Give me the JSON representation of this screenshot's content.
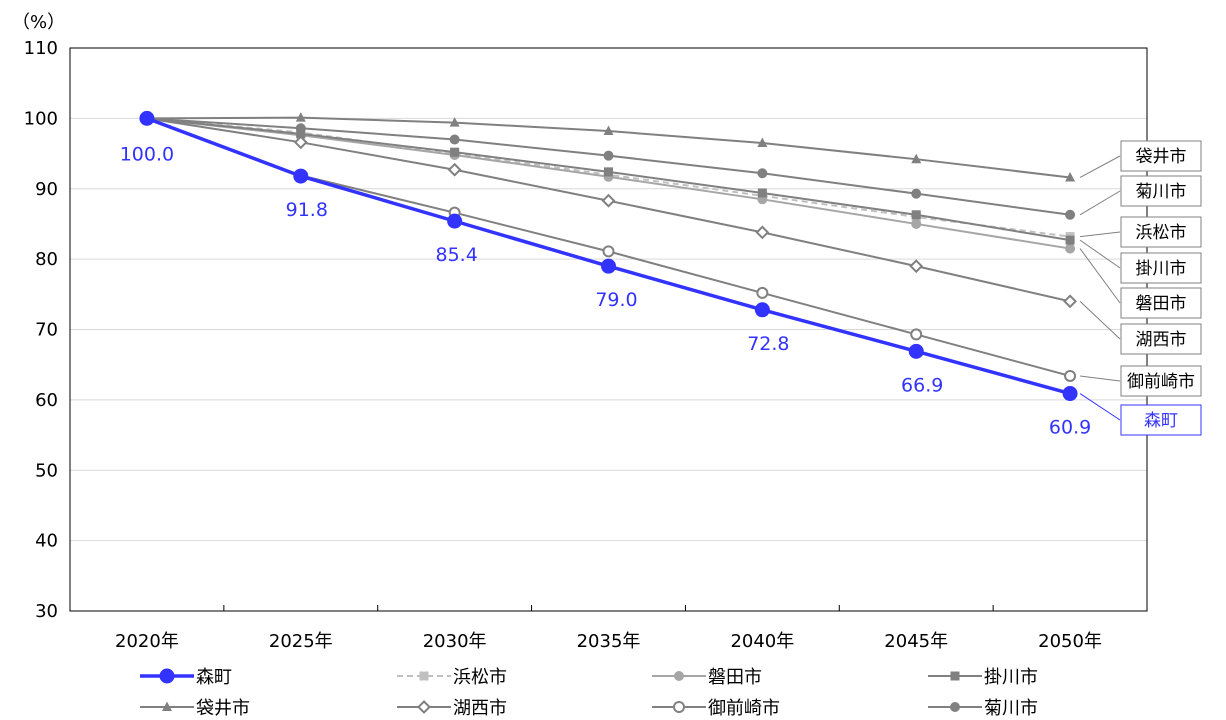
{
  "chart_data": {
    "type": "line",
    "title": "",
    "ylabel": "（%）",
    "xlabel": "",
    "ylim": [
      30,
      110
    ],
    "yticks": [
      30,
      40,
      50,
      60,
      70,
      80,
      90,
      100,
      110
    ],
    "categories": [
      "2020年",
      "2025年",
      "2030年",
      "2035年",
      "2040年",
      "2045年",
      "2050年"
    ],
    "grid": true,
    "legend_position": "bottom",
    "series": [
      {
        "name": "森町",
        "values": [
          100.0,
          91.8,
          85.4,
          79.0,
          72.8,
          66.9,
          60.9
        ],
        "color": "#3333ff",
        "marker": "circle-filled",
        "line": "solid-thick",
        "data_labels": [
          "100.0",
          "91.8",
          "85.4",
          "79.0",
          "72.8",
          "66.9",
          "60.9"
        ]
      },
      {
        "name": "浜松市",
        "values": [
          100.0,
          98.0,
          95.0,
          92.0,
          89.0,
          86.0,
          83.2
        ],
        "color": "#c0c0c0",
        "marker": "square",
        "line": "dashed"
      },
      {
        "name": "磐田市",
        "values": [
          100.0,
          97.6,
          94.8,
          91.7,
          88.5,
          85.0,
          81.5
        ],
        "color": "#a6a6a6",
        "marker": "circle-filled",
        "line": "solid"
      },
      {
        "name": "掛川市",
        "values": [
          100.0,
          97.8,
          95.2,
          92.4,
          89.4,
          86.3,
          82.7
        ],
        "color": "#808080",
        "marker": "square",
        "line": "solid"
      },
      {
        "name": "袋井市",
        "values": [
          100.0,
          100.1,
          99.4,
          98.2,
          96.5,
          94.2,
          91.6
        ],
        "color": "#808080",
        "marker": "triangle",
        "line": "solid"
      },
      {
        "name": "湖西市",
        "values": [
          100.0,
          96.6,
          92.7,
          88.3,
          83.8,
          79.0,
          74.0
        ],
        "color": "#808080",
        "marker": "diamond-open",
        "line": "solid"
      },
      {
        "name": "御前崎市",
        "values": [
          100.0,
          91.9,
          86.6,
          81.1,
          75.2,
          69.3,
          63.4
        ],
        "color": "#808080",
        "marker": "circle-open",
        "line": "solid"
      },
      {
        "name": "菊川市",
        "values": [
          100.0,
          98.6,
          97.0,
          94.7,
          92.2,
          89.3,
          86.3
        ],
        "color": "#808080",
        "marker": "circle-filled",
        "line": "solid"
      }
    ],
    "end_labels": [
      "袋井市",
      "菊川市",
      "浜松市",
      "掛川市",
      "磐田市",
      "湖西市",
      "御前崎市",
      "森町"
    ]
  }
}
